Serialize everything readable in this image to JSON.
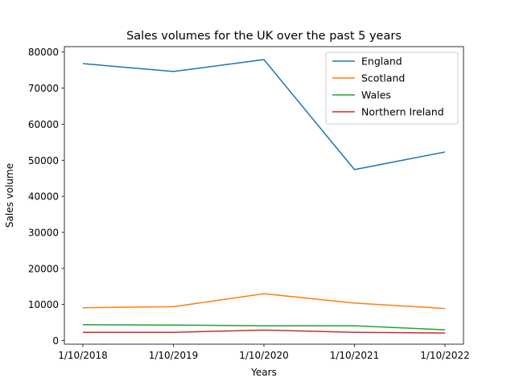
{
  "chart_data": {
    "type": "line",
    "title": "Sales volumes for the UK over the past 5 years",
    "xlabel": "Years",
    "ylabel": "Sales volume",
    "categories": [
      "1/10/2018",
      "1/10/2019",
      "1/10/2020",
      "1/10/2021",
      "1/10/2022"
    ],
    "ylim": [
      -1000,
      81500
    ],
    "yticks": [
      0,
      10000,
      20000,
      30000,
      40000,
      50000,
      60000,
      70000,
      80000
    ],
    "ytick_labels": [
      "0",
      "10000",
      "20000",
      "30000",
      "40000",
      "50000",
      "60000",
      "70000",
      "80000"
    ],
    "grid": false,
    "legend_position": "top-right",
    "series": [
      {
        "name": "England",
        "color": "#1f77b4",
        "values": [
          76800,
          74600,
          77900,
          47400,
          52300
        ]
      },
      {
        "name": "Scotland",
        "color": "#ff7f0e",
        "values": [
          9100,
          9400,
          13000,
          10400,
          8900
        ]
      },
      {
        "name": "Wales",
        "color": "#2ca02c",
        "values": [
          4400,
          4300,
          4100,
          4100,
          3000
        ]
      },
      {
        "name": "Northern Ireland",
        "color": "#d62728",
        "values": [
          2300,
          2300,
          2900,
          2300,
          2100
        ]
      }
    ]
  }
}
